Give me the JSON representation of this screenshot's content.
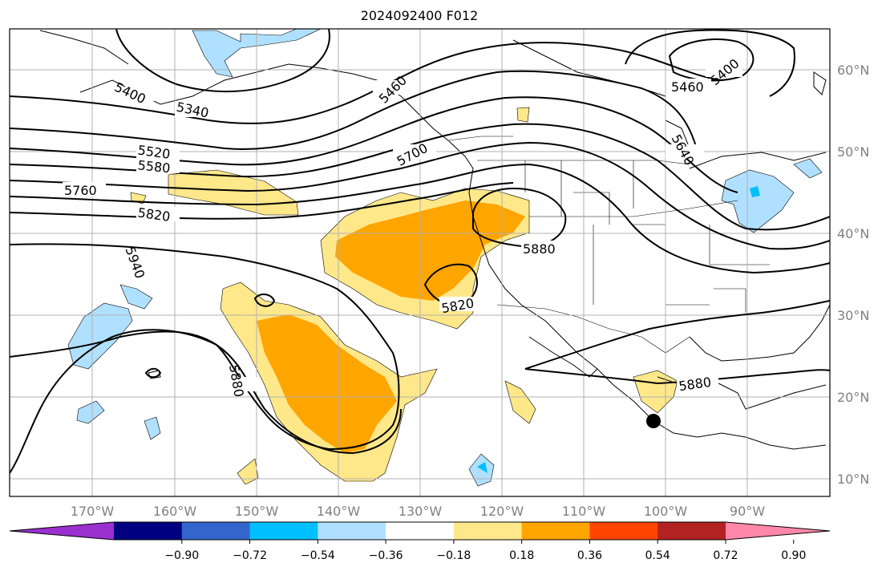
{
  "title": "2024092400 F012",
  "lon_labels": [
    "170°W",
    "160°W",
    "150°W",
    "140°W",
    "130°W",
    "120°W",
    "110°W",
    "100°W",
    "90°W"
  ],
  "lat_labels": [
    "60°N",
    "50°N",
    "40°N",
    "30°N",
    "20°N",
    "10°N"
  ],
  "contour_labels": [
    "5340",
    "5400",
    "5460",
    "5400",
    "5460",
    "5520",
    "5580",
    "5640",
    "5700",
    "5760",
    "5820",
    "5820",
    "5880",
    "5880",
    "5880",
    "5940"
  ],
  "colorbar": {
    "ticks": [
      "−0.90",
      "−0.72",
      "−0.54",
      "−0.36",
      "−0.18",
      "0.18",
      "0.36",
      "0.54",
      "0.72",
      "0.90"
    ],
    "colors": [
      "#9b30d0",
      "#000080",
      "#3366cc",
      "#00bfff",
      "#b0e0ff",
      "#ffffff",
      "#ffe88a",
      "#ffa500",
      "#ff4500",
      "#b22222",
      "#ff88aa"
    ]
  },
  "marker": "location-dot"
}
